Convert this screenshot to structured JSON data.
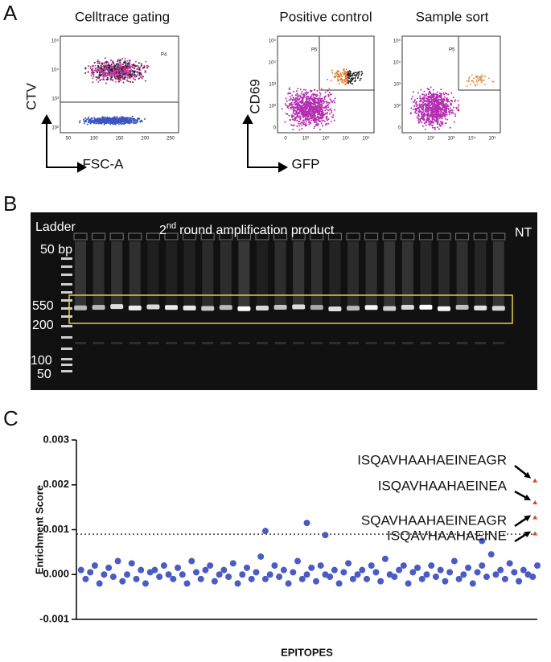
{
  "panel_a": {
    "label": "A",
    "celltrace": {
      "title": "Celltrace gating",
      "y_label": "CTV",
      "x_label": "FSC-A",
      "gate": "P4",
      "xticks": [
        "50",
        "100",
        "150",
        "200",
        "250"
      ],
      "yticks": [
        "10⁵",
        "10⁴",
        "10³",
        "10²"
      ]
    },
    "positive_control": {
      "title": "Positive control",
      "y_label": "CD69",
      "x_label": "GFP",
      "gate": "P5",
      "xticks": [
        "0",
        "10²",
        "10³",
        "10⁴",
        "10⁵"
      ],
      "yticks": [
        "10⁵",
        "10⁴",
        "10³",
        "10²",
        "0"
      ]
    },
    "sample_sort": {
      "title": "Sample sort",
      "gate": "P5",
      "xticks": [
        "0",
        "10²",
        "10³",
        "10⁴",
        "10⁵"
      ],
      "yticks": [
        "10⁵",
        "10⁴",
        "10³",
        "10²",
        "0"
      ]
    }
  },
  "panel_b": {
    "label": "B",
    "ladder": "Ladder",
    "ladder_size": "50 bp",
    "title_ordinal": "2",
    "title_suffix": "nd",
    "title_rest": "round amplification product",
    "control": "NT",
    "marker_labels": [
      "550",
      "200",
      "100",
      "50"
    ]
  },
  "panel_c": {
    "label": "C"
  },
  "chart_data": {
    "type": "scatter",
    "y_label": "Enrichment Score",
    "x_label": "EPITOPES",
    "ylim": [
      -0.001,
      0.003
    ],
    "yticks": [
      0.003,
      0.002,
      0.001,
      {
        "value": 0,
        "label": "0.000"
      },
      -0.001
    ],
    "xlim": [
      0,
      100
    ],
    "threshold": 0.0009,
    "series": [
      {
        "color": "#4a5cc4",
        "marker": "circle",
        "x": [
          1,
          2,
          3,
          4,
          5,
          6,
          7,
          8,
          9,
          10,
          11,
          12,
          13,
          14,
          15,
          16,
          17,
          18,
          19,
          20,
          21,
          22,
          23,
          24,
          25,
          26,
          27,
          28,
          29,
          30,
          31,
          32,
          33,
          34,
          35,
          36,
          37,
          38,
          39,
          40,
          41,
          42,
          43,
          44,
          45,
          46,
          47,
          48,
          49,
          50,
          51,
          52,
          53,
          54,
          55,
          56,
          57,
          58,
          59,
          60,
          61,
          62,
          63,
          64,
          65,
          66,
          67,
          68,
          69,
          70,
          71,
          72,
          73,
          74,
          75,
          76,
          77,
          78,
          79,
          80,
          81,
          82,
          83,
          84,
          85,
          86,
          87,
          88,
          89,
          90,
          91,
          92,
          93,
          94,
          95,
          96,
          97,
          98,
          99,
          100,
          41,
          50,
          54,
          88
        ],
        "values": [
          0.0001,
          -0.0001,
          5e-05,
          0.0002,
          -0.0002,
          0,
          0.00015,
          -5e-05,
          0.0003,
          -0.00015,
          0,
          0.00025,
          -0.0001,
          0.0001,
          -0.0002,
          5e-05,
          0.0001,
          -5e-05,
          0.0002,
          0,
          -0.0001,
          0.00015,
          0,
          -0.0002,
          0.0003,
          5e-05,
          -0.0001,
          0.0001,
          0.0002,
          -0.00015,
          0,
          0.0001,
          -5e-05,
          0.00025,
          -0.0002,
          0,
          0.00015,
          -0.0001,
          5e-05,
          0.0004,
          -0.0001,
          0,
          0.0002,
          -5e-05,
          0.0001,
          -0.0002,
          5e-05,
          0.0003,
          -0.0001,
          0,
          0.00015,
          -0.00015,
          0.0002,
          0,
          -5e-05,
          0.0001,
          -0.0002,
          5e-05,
          0.00025,
          -0.0001,
          0,
          0.0001,
          -0.0001,
          0.0002,
          5e-05,
          -0.00015,
          0.00035,
          0,
          -5e-05,
          0.0001,
          0.0002,
          -0.0002,
          5e-05,
          0.00015,
          -0.0001,
          0,
          0.0002,
          -5e-05,
          0.0001,
          -0.00015,
          5e-05,
          0.0003,
          -0.0001,
          0,
          0.00015,
          -0.0002,
          5e-05,
          0.0002,
          -5e-05,
          0.00045,
          0,
          0.0001,
          -0.0001,
          0.00025,
          5e-05,
          -0.00015,
          0.0001,
          0,
          -5e-05,
          0.0002,
          0.00097,
          0.00115,
          0.00088,
          0.00075
        ]
      },
      {
        "color": "#d9452b",
        "marker": "triangle",
        "x": [
          99.5,
          99.5,
          99.5,
          99.5
        ],
        "values": [
          0.00209,
          0.0016,
          0.00127,
          0.00091
        ]
      }
    ],
    "annotations": [
      "ISQAVHAAHAEINEAGR",
      "ISQAVHAAHAEINEA",
      "SQAVHAAHAEINEAGR",
      "ISQAVHAAHAEINE"
    ]
  }
}
